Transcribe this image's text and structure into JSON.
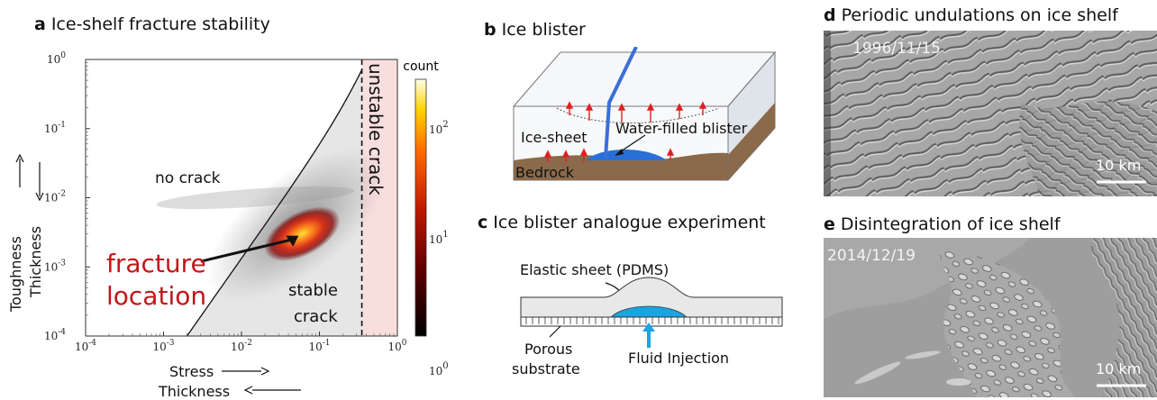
{
  "panel_a": {
    "letter": "a",
    "title": "Ice-shelf fracture stability",
    "region_no_crack": "no crack",
    "region_stable_1": "stable",
    "region_stable_2": "crack",
    "region_unstable": "unstable  crack",
    "annotation_1": "fracture",
    "annotation_2": "location",
    "xlabel_top": "Stress",
    "xlabel_bottom": "Thickness",
    "ylabel_top": "Toughness",
    "ylabel_bottom": "Thickness",
    "colorbar_title": "count"
  },
  "chart_data": {
    "type": "heatmap",
    "title": "Ice-shelf fracture stability",
    "xscale": "log",
    "yscale": "log",
    "xlim": [
      0.0001,
      1
    ],
    "ylim": [
      0.0001,
      1
    ],
    "x_tick_labels": [
      "10^-4",
      "10^-3",
      "10^-2",
      "10^-1",
      "10^0"
    ],
    "y_tick_labels": [
      "10^-4",
      "10^-3",
      "10^-2",
      "10^-1",
      "10^0"
    ],
    "stability_boundary_x": 0.35,
    "hotspot": {
      "x": 0.06,
      "y": 0.003
    },
    "colorbar": {
      "label": "count",
      "scale": "log",
      "ticks": [
        "10^0",
        "10^1",
        "10^2"
      ]
    },
    "regions": [
      "no crack",
      "stable crack",
      "unstable crack"
    ],
    "colors": {
      "stable_fill": "#e6e6e6",
      "unstable_fill": "#f9dede",
      "hot": "#ffd23a",
      "mid": "#d83a10",
      "low": "#6a0d0d"
    }
  },
  "panel_b": {
    "letter": "b",
    "title": "Ice blister",
    "ice_sheet": "Ice-sheet",
    "water_blister": "Water-filled blister",
    "bedrock": "Bedrock"
  },
  "panel_c": {
    "letter": "c",
    "title": "Ice blister analogue experiment",
    "elastic_sheet": "Elastic sheet (PDMS)",
    "porous_1": "Porous",
    "porous_2": "substrate",
    "fluid_injection": "Fluid Injection"
  },
  "panel_d": {
    "letter": "d",
    "title": "Periodic undulations on ice shelf",
    "date": "1996/11/15",
    "scale": "10 km"
  },
  "panel_e": {
    "letter": "e",
    "title": "Disintegration of ice shelf",
    "date": "2014/12/19",
    "scale": "10 km"
  }
}
